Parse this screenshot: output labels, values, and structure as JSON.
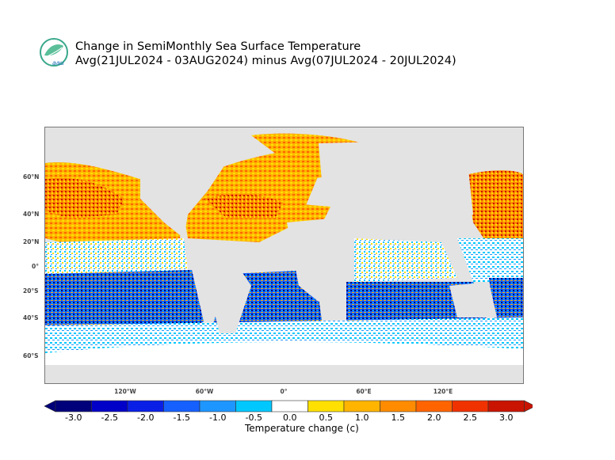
{
  "header": {
    "title_line1": "Change in SemiMonthly Sea Surface Temperature",
    "title_line2": "Avg(21JUL2024 - 03AUG2024) minus Avg(07JUL2024 - 20JUL2024)",
    "logo_text": "aau"
  },
  "map": {
    "land_color": "#e3e3e3",
    "lat_labels": [
      "60°N",
      "40°N",
      "20°N",
      "0°",
      "20°S",
      "40°S",
      "60°S"
    ],
    "lon_labels": [
      "120°W",
      "60°W",
      "0°",
      "60°E",
      "120°E"
    ]
  },
  "colorbar": {
    "title": "Temperature change  (c)",
    "tick_labels": [
      "-3.0",
      "-2.5",
      "-2.0",
      "-1.5",
      "-1.0",
      "-0.5",
      "0.0",
      "0.5",
      "1.0",
      "1.5",
      "2.0",
      "2.5",
      "3.0"
    ],
    "colors": [
      "#00007a",
      "#0000c8",
      "#0a1fe6",
      "#1560ff",
      "#1e96ff",
      "#00c8ff",
      "#ffffff",
      "#ffe000",
      "#ffb400",
      "#ff8c00",
      "#ff6400",
      "#f03200",
      "#c81400"
    ]
  }
}
